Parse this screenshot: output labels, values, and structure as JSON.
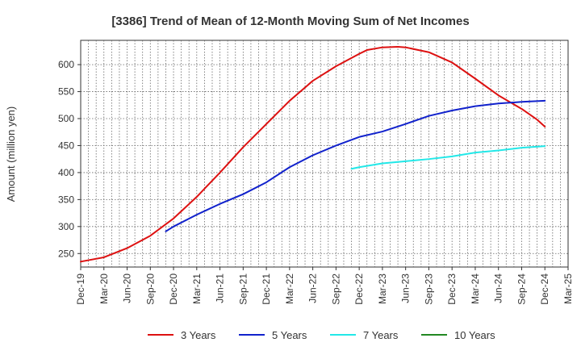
{
  "chart_data": {
    "type": "line",
    "title": "[3386]  Trend of Mean of 12-Month Moving Sum of Net Incomes",
    "xlabel": "",
    "ylabel": "Amount (million yen)",
    "ylim": [
      225,
      645
    ],
    "yticks": [
      250,
      300,
      350,
      400,
      450,
      500,
      550,
      600
    ],
    "x_ticks": [
      "Dec-19",
      "Mar-20",
      "Jun-20",
      "Sep-20",
      "Dec-20",
      "Mar-21",
      "Jun-21",
      "Sep-21",
      "Dec-21",
      "Mar-22",
      "Jun-22",
      "Sep-22",
      "Dec-22",
      "Mar-23",
      "Jun-23",
      "Sep-23",
      "Dec-23",
      "Mar-24",
      "Jun-24",
      "Sep-24",
      "Dec-24",
      "Mar-25"
    ],
    "grid": true,
    "legend_position": "bottom",
    "series": [
      {
        "name": "3 Years",
        "color": "#dd1111",
        "x": [
          "Dec-19",
          "Mar-20",
          "Jun-20",
          "Sep-20",
          "Dec-20",
          "Mar-21",
          "Jun-21",
          "Sep-21",
          "Dec-21",
          "Mar-22",
          "Jun-22",
          "Sep-22",
          "Dec-22",
          "Jan-23",
          "Mar-23",
          "May-23",
          "Jun-23",
          "Sep-23",
          "Dec-23",
          "Mar-24",
          "Jun-24",
          "Sep-24",
          "Nov-24",
          "Dec-24"
        ],
        "values": [
          235,
          243,
          260,
          283,
          315,
          355,
          400,
          447,
          490,
          533,
          570,
          597,
          620,
          627,
          632,
          633,
          632,
          623,
          604,
          574,
          543,
          518,
          498,
          485
        ]
      },
      {
        "name": "5 Years",
        "color": "#1122cc",
        "x": [
          "Nov-20",
          "Dec-20",
          "Mar-21",
          "Jun-21",
          "Sep-21",
          "Dec-21",
          "Mar-22",
          "Jun-22",
          "Sep-22",
          "Dec-22",
          "Mar-23",
          "Jun-23",
          "Sep-23",
          "Dec-23",
          "Mar-24",
          "Jun-24",
          "Sep-24",
          "Dec-24"
        ],
        "values": [
          291,
          300,
          322,
          342,
          360,
          382,
          410,
          432,
          450,
          466,
          476,
          490,
          505,
          515,
          523,
          528,
          531,
          533
        ]
      },
      {
        "name": "7 Years",
        "color": "#22e8e8",
        "x": [
          "Nov-22",
          "Dec-22",
          "Mar-23",
          "Jun-23",
          "Sep-23",
          "Dec-23",
          "Mar-24",
          "Jun-24",
          "Sep-24",
          "Dec-24"
        ],
        "values": [
          407,
          410,
          417,
          421,
          425,
          430,
          437,
          441,
          446,
          449
        ]
      },
      {
        "name": "10 Years",
        "color": "#228822",
        "x": [],
        "values": []
      }
    ]
  }
}
